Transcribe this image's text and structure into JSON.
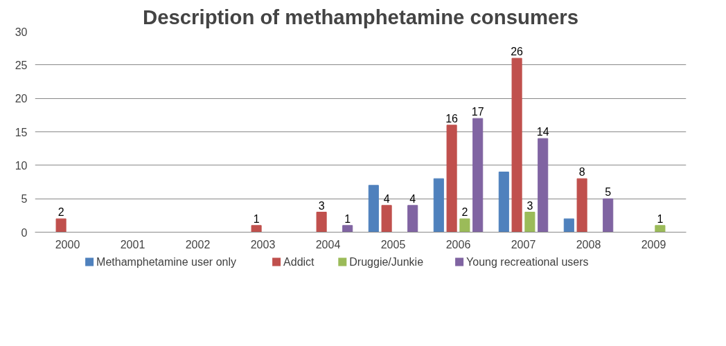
{
  "chart_data": {
    "type": "bar",
    "title": "Description of methamphetamine consumers",
    "categories": [
      "2000",
      "2001",
      "2002",
      "2003",
      "2004",
      "2005",
      "2006",
      "2007",
      "2008",
      "2009"
    ],
    "series": [
      {
        "name": "Methamphetamine user only",
        "color": "#4f81bd",
        "values": [
          null,
          null,
          null,
          null,
          null,
          7,
          8,
          9,
          2,
          null
        ]
      },
      {
        "name": "Addict",
        "color": "#c0504d",
        "values": [
          2,
          null,
          null,
          1,
          3,
          4,
          16,
          26,
          8,
          null
        ],
        "value_labels": [
          "2",
          null,
          null,
          "1",
          "3",
          "4",
          "16",
          "26",
          "8",
          null
        ]
      },
      {
        "name": "Druggie/Junkie",
        "color": "#9bbb59",
        "values": [
          null,
          null,
          null,
          null,
          null,
          null,
          2,
          3,
          null,
          1
        ],
        "value_labels": [
          null,
          null,
          null,
          null,
          null,
          null,
          "2",
          "3",
          null,
          "1"
        ]
      },
      {
        "name": "Young recreational users",
        "color": "#8064a2",
        "values": [
          null,
          null,
          null,
          null,
          1,
          4,
          17,
          14,
          5,
          null
        ],
        "value_labels": [
          null,
          null,
          null,
          null,
          "1",
          "4",
          "17",
          "14",
          "5",
          null
        ]
      }
    ],
    "ylim": [
      0,
      30
    ],
    "yticks": [
      0,
      5,
      10,
      15,
      20,
      25,
      30
    ],
    "grid": "y",
    "legend": "bottom"
  }
}
